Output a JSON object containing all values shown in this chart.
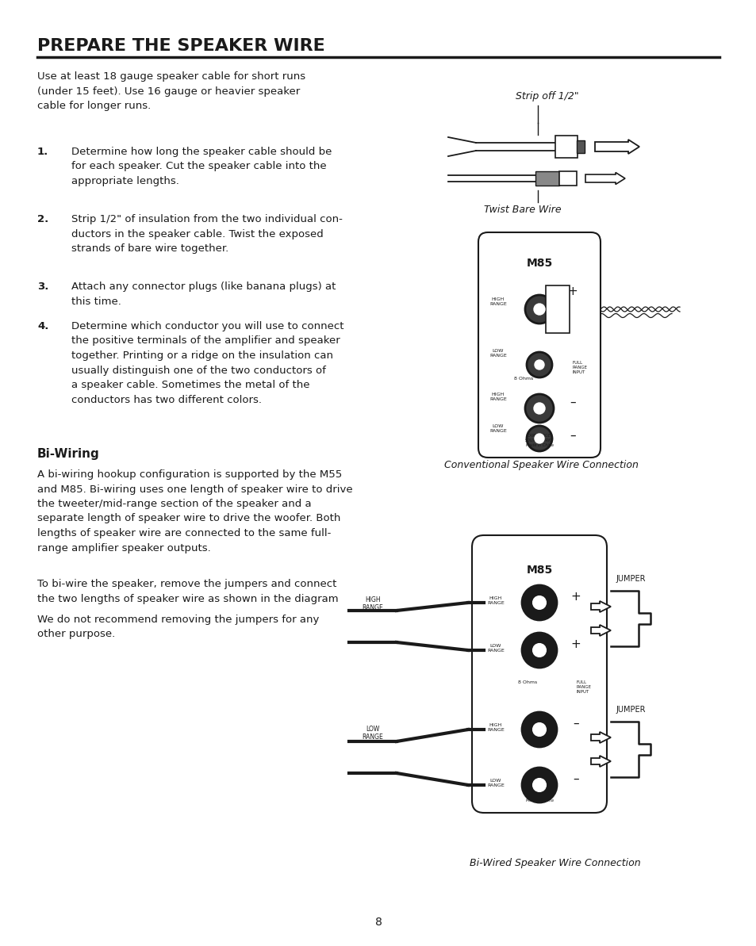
{
  "title": "PREPARE THE SPEAKER WIRE",
  "page_number": "8",
  "bg": "#ffffff",
  "tc": "#1a1a1a",
  "intro": "Use at least 18 gauge speaker cable for short runs\n(under 15 feet). Use 16 gauge or heavier speaker\ncable for longer runs.",
  "items": [
    {
      "n": "1.",
      "t": "Determine how long the speaker cable should be\nfor each speaker. Cut the speaker cable into the\nappropriate lengths."
    },
    {
      "n": "2.",
      "t": "Strip 1/2\" of insulation from the two individual con-\nductors in the speaker cable. Twist the exposed\nstrands of bare wire together."
    },
    {
      "n": "3.",
      "t": "Attach any connector plugs (like banana plugs) at\nthis time."
    },
    {
      "n": "4.",
      "t": "Determine which conductor you will use to connect\nthe positive terminals of the amplifier and speaker\ntogether. Printing or a ridge on the insulation can\nusually distinguish one of the two conductors of\na speaker cable. Sometimes the metal of the\nconductors has two different colors."
    }
  ],
  "bw_title": "Bi-Wiring",
  "bw1": "A bi-wiring hookup configuration is supported by the M55\nand M85. Bi-wiring uses one length of speaker wire to drive\nthe tweeter/mid-range section of the speaker and a\nseparate length of speaker wire to drive the woofer. Both\nlengths of speaker wire are connected to the same full-\nrange amplifier speaker outputs.",
  "bw2": "To bi-wire the speaker, remove the jumpers and connect\nthe two lengths of speaker wire as shown in the diagram",
  "bw3": "We do not recommend removing the jumpers for any\nother purpose.",
  "cap1": "Strip off 1/2\"",
  "cap2": "Twist Bare Wire",
  "cap3": "Conventional Speaker Wire Connection",
  "cap4": "Bi-Wired Speaker Wire Connection",
  "jumper": "JUMPER"
}
